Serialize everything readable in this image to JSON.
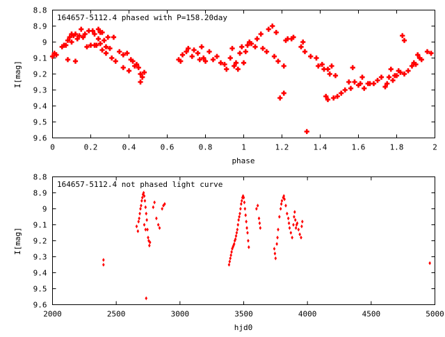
{
  "chart_data": [
    {
      "type": "scatter",
      "title": "164657-5112.4 phased with P=158.20day",
      "xlabel": "phase",
      "ylabel": "I[mag]",
      "xlim": [
        0,
        2
      ],
      "ylim": [
        8.8,
        9.6
      ],
      "y_inverted": true,
      "grid": false,
      "marker": "cross",
      "color": "#ff0000",
      "x_ticks": [
        "0",
        "0.2",
        "0.4",
        "0.6",
        "0.8",
        "1",
        "1.2",
        "1.4",
        "1.6",
        "1.8",
        "2"
      ],
      "x_tick_values": [
        0,
        0.2,
        0.4,
        0.6,
        0.8,
        1.0,
        1.2,
        1.4,
        1.6,
        1.8,
        2.0
      ],
      "y_ticks": [
        "8.8",
        "8.9",
        "9",
        "9.1",
        "9.2",
        "9.3",
        "9.4",
        "9.5",
        "9.6"
      ],
      "y_tick_values": [
        8.8,
        8.9,
        9.0,
        9.1,
        9.2,
        9.3,
        9.4,
        9.5,
        9.6
      ],
      "points": [
        [
          0.0,
          9.09
        ],
        [
          0.01,
          9.07
        ],
        [
          0.02,
          9.08
        ],
        [
          0.05,
          9.03
        ],
        [
          0.06,
          9.02
        ],
        [
          0.07,
          9.02
        ],
        [
          0.08,
          8.99
        ],
        [
          0.08,
          9.11
        ],
        [
          0.09,
          8.97
        ],
        [
          0.1,
          9.0
        ],
        [
          0.1,
          8.95
        ],
        [
          0.11,
          8.96
        ],
        [
          0.12,
          8.95
        ],
        [
          0.12,
          9.12
        ],
        [
          0.13,
          8.98
        ],
        [
          0.14,
          8.96
        ],
        [
          0.15,
          8.92
        ],
        [
          0.16,
          8.97
        ],
        [
          0.17,
          8.95
        ],
        [
          0.18,
          9.03
        ],
        [
          0.19,
          8.93
        ],
        [
          0.2,
          9.02
        ],
        [
          0.21,
          8.93
        ],
        [
          0.22,
          9.02
        ],
        [
          0.22,
          8.95
        ],
        [
          0.23,
          9.02
        ],
        [
          0.24,
          8.92
        ],
        [
          0.24,
          8.98
        ],
        [
          0.25,
          9.01
        ],
        [
          0.25,
          8.94
        ],
        [
          0.26,
          8.94
        ],
        [
          0.26,
          9.05
        ],
        [
          0.27,
          8.99
        ],
        [
          0.28,
          9.03
        ],
        [
          0.28,
          9.07
        ],
        [
          0.29,
          8.97
        ],
        [
          0.3,
          9.04
        ],
        [
          0.31,
          9.1
        ],
        [
          0.32,
          8.97
        ],
        [
          0.33,
          9.12
        ],
        [
          0.35,
          9.06
        ],
        [
          0.37,
          9.08
        ],
        [
          0.37,
          9.16
        ],
        [
          0.39,
          9.07
        ],
        [
          0.4,
          9.18
        ],
        [
          0.41,
          9.11
        ],
        [
          0.42,
          9.12
        ],
        [
          0.43,
          9.15
        ],
        [
          0.44,
          9.14
        ],
        [
          0.45,
          9.16
        ],
        [
          0.46,
          9.2
        ],
        [
          0.46,
          9.25
        ],
        [
          0.47,
          9.22
        ],
        [
          0.48,
          9.19
        ],
        [
          0.66,
          9.11
        ],
        [
          0.67,
          9.12
        ],
        [
          0.68,
          9.08
        ],
        [
          0.7,
          9.06
        ],
        [
          0.71,
          9.04
        ],
        [
          0.73,
          9.09
        ],
        [
          0.74,
          9.05
        ],
        [
          0.76,
          9.07
        ],
        [
          0.77,
          9.11
        ],
        [
          0.78,
          9.03
        ],
        [
          0.79,
          9.1
        ],
        [
          0.8,
          9.12
        ],
        [
          0.82,
          9.06
        ],
        [
          0.84,
          9.11
        ],
        [
          0.86,
          9.09
        ],
        [
          0.88,
          9.13
        ],
        [
          0.9,
          9.14
        ],
        [
          0.91,
          9.17
        ],
        [
          0.93,
          9.1
        ],
        [
          0.94,
          9.04
        ],
        [
          0.95,
          9.15
        ],
        [
          0.96,
          9.13
        ],
        [
          0.97,
          9.17
        ],
        [
          0.98,
          9.07
        ],
        [
          0.99,
          9.03
        ],
        [
          1.0,
          9.13
        ],
        [
          1.01,
          9.06
        ],
        [
          1.02,
          9.02
        ],
        [
          1.03,
          9.0
        ],
        [
          1.04,
          9.01
        ],
        [
          1.06,
          9.03
        ],
        [
          1.07,
          8.98
        ],
        [
          1.09,
          8.95
        ],
        [
          1.1,
          9.04
        ],
        [
          1.12,
          9.06
        ],
        [
          1.13,
          8.92
        ],
        [
          1.15,
          8.9
        ],
        [
          1.16,
          9.09
        ],
        [
          1.17,
          8.94
        ],
        [
          1.18,
          9.12
        ],
        [
          1.19,
          9.35
        ],
        [
          1.21,
          9.32
        ],
        [
          1.21,
          9.15
        ],
        [
          1.22,
          8.99
        ],
        [
          1.23,
          8.98
        ],
        [
          1.25,
          8.98
        ],
        [
          1.26,
          8.97
        ],
        [
          1.3,
          9.03
        ],
        [
          1.31,
          9.0
        ],
        [
          1.32,
          9.06
        ],
        [
          1.33,
          9.56
        ],
        [
          1.35,
          9.09
        ],
        [
          1.38,
          9.1
        ],
        [
          1.39,
          9.15
        ],
        [
          1.41,
          9.14
        ],
        [
          1.42,
          9.17
        ],
        [
          1.43,
          9.34
        ],
        [
          1.44,
          9.36
        ],
        [
          1.44,
          9.17
        ],
        [
          1.45,
          9.2
        ],
        [
          1.46,
          9.15
        ],
        [
          1.47,
          9.35
        ],
        [
          1.48,
          9.21
        ],
        [
          1.49,
          9.34
        ],
        [
          1.51,
          9.32
        ],
        [
          1.53,
          9.3
        ],
        [
          1.55,
          9.25
        ],
        [
          1.56,
          9.29
        ],
        [
          1.57,
          9.16
        ],
        [
          1.58,
          9.25
        ],
        [
          1.6,
          9.27
        ],
        [
          1.61,
          9.26
        ],
        [
          1.62,
          9.22
        ],
        [
          1.63,
          9.29
        ],
        [
          1.65,
          9.26
        ],
        [
          1.66,
          9.26
        ],
        [
          1.68,
          9.26
        ],
        [
          1.7,
          9.24
        ],
        [
          1.72,
          9.22
        ],
        [
          1.74,
          9.28
        ],
        [
          1.75,
          9.26
        ],
        [
          1.76,
          9.22
        ],
        [
          1.77,
          9.17
        ],
        [
          1.78,
          9.24
        ],
        [
          1.79,
          9.21
        ],
        [
          1.8,
          9.21
        ],
        [
          1.81,
          9.18
        ],
        [
          1.82,
          9.19
        ],
        [
          1.83,
          8.96
        ],
        [
          1.84,
          8.99
        ],
        [
          1.84,
          9.2
        ],
        [
          1.86,
          9.18
        ],
        [
          1.88,
          9.15
        ],
        [
          1.89,
          9.13
        ],
        [
          1.9,
          9.14
        ],
        [
          1.91,
          9.08
        ],
        [
          1.92,
          9.1
        ],
        [
          1.93,
          9.11
        ],
        [
          1.96,
          9.06
        ],
        [
          1.98,
          9.07
        ]
      ]
    },
    {
      "type": "scatter",
      "title": "164657-5112.4 not phased light curve",
      "xlabel": "hjd0",
      "ylabel": "I[mag]",
      "xlim": [
        2000,
        5000
      ],
      "ylim": [
        8.8,
        9.6
      ],
      "y_inverted": true,
      "grid": false,
      "marker": "diamond",
      "color": "#ff0000",
      "x_ticks": [
        "2000",
        "2500",
        "3000",
        "3500",
        "4000",
        "4500",
        "5000"
      ],
      "x_tick_values": [
        2000,
        2500,
        3000,
        3500,
        4000,
        4500,
        5000
      ],
      "y_ticks": [
        "8.8",
        "8.9",
        "9",
        "9.1",
        "9.2",
        "9.3",
        "9.4",
        "9.5",
        "9.6"
      ],
      "y_tick_values": [
        8.8,
        8.9,
        9.0,
        9.1,
        9.2,
        9.3,
        9.4,
        9.5,
        9.6
      ],
      "points": [
        [
          2400,
          9.32
        ],
        [
          2400,
          9.35
        ],
        [
          2660,
          9.11
        ],
        [
          2670,
          9.14
        ],
        [
          2675,
          9.08
        ],
        [
          2680,
          9.06
        ],
        [
          2685,
          9.03
        ],
        [
          2690,
          9.0
        ],
        [
          2695,
          8.98
        ],
        [
          2700,
          8.95
        ],
        [
          2705,
          8.93
        ],
        [
          2710,
          8.91
        ],
        [
          2715,
          8.9
        ],
        [
          2720,
          8.92
        ],
        [
          2725,
          8.95
        ],
        [
          2730,
          8.99
        ],
        [
          2735,
          9.03
        ],
        [
          2740,
          9.07
        ],
        [
          2745,
          9.13
        ],
        [
          2750,
          9.18
        ],
        [
          2755,
          9.2
        ],
        [
          2760,
          9.23
        ],
        [
          2765,
          9.21
        ],
        [
          2735,
          9.56
        ],
        [
          2720,
          9.1
        ],
        [
          2730,
          9.13
        ],
        [
          2790,
          8.99
        ],
        [
          2800,
          8.96
        ],
        [
          2815,
          9.06
        ],
        [
          2830,
          9.1
        ],
        [
          2840,
          9.12
        ],
        [
          2860,
          9.0
        ],
        [
          2870,
          8.98
        ],
        [
          2880,
          8.97
        ],
        [
          3385,
          9.35
        ],
        [
          3390,
          9.33
        ],
        [
          3395,
          9.31
        ],
        [
          3400,
          9.29
        ],
        [
          3405,
          9.27
        ],
        [
          3410,
          9.25
        ],
        [
          3415,
          9.24
        ],
        [
          3420,
          9.23
        ],
        [
          3425,
          9.22
        ],
        [
          3430,
          9.2
        ],
        [
          3435,
          9.19
        ],
        [
          3440,
          9.17
        ],
        [
          3445,
          9.15
        ],
        [
          3450,
          9.13
        ],
        [
          3455,
          9.1
        ],
        [
          3460,
          9.07
        ],
        [
          3465,
          9.05
        ],
        [
          3470,
          9.03
        ],
        [
          3475,
          9.0
        ],
        [
          3480,
          8.97
        ],
        [
          3485,
          8.95
        ],
        [
          3490,
          8.93
        ],
        [
          3495,
          8.92
        ],
        [
          3500,
          8.93
        ],
        [
          3505,
          8.96
        ],
        [
          3510,
          9.0
        ],
        [
          3515,
          9.04
        ],
        [
          3520,
          9.08
        ],
        [
          3525,
          9.12
        ],
        [
          3530,
          9.15
        ],
        [
          3535,
          9.2
        ],
        [
          3540,
          9.24
        ],
        [
          3600,
          9.0
        ],
        [
          3610,
          8.98
        ],
        [
          3620,
          9.06
        ],
        [
          3625,
          9.09
        ],
        [
          3630,
          9.12
        ],
        [
          3740,
          9.25
        ],
        [
          3745,
          9.28
        ],
        [
          3750,
          9.31
        ],
        [
          3760,
          9.22
        ],
        [
          3765,
          9.18
        ],
        [
          3770,
          9.13
        ],
        [
          3780,
          9.05
        ],
        [
          3790,
          9.0
        ],
        [
          3795,
          8.97
        ],
        [
          3800,
          8.95
        ],
        [
          3810,
          8.93
        ],
        [
          3815,
          8.92
        ],
        [
          3820,
          8.94
        ],
        [
          3830,
          8.98
        ],
        [
          3840,
          9.03
        ],
        [
          3850,
          9.06
        ],
        [
          3855,
          9.09
        ],
        [
          3860,
          9.12
        ],
        [
          3870,
          9.15
        ],
        [
          3880,
          9.18
        ],
        [
          3890,
          9.1
        ],
        [
          3895,
          9.05
        ],
        [
          3900,
          9.02
        ],
        [
          3905,
          9.07
        ],
        [
          3910,
          9.12
        ],
        [
          3915,
          9.1
        ],
        [
          3920,
          9.09
        ],
        [
          3930,
          9.13
        ],
        [
          3940,
          9.16
        ],
        [
          3950,
          9.18
        ],
        [
          3955,
          9.11
        ],
        [
          3960,
          9.08
        ],
        [
          4960,
          9.34
        ]
      ]
    }
  ]
}
